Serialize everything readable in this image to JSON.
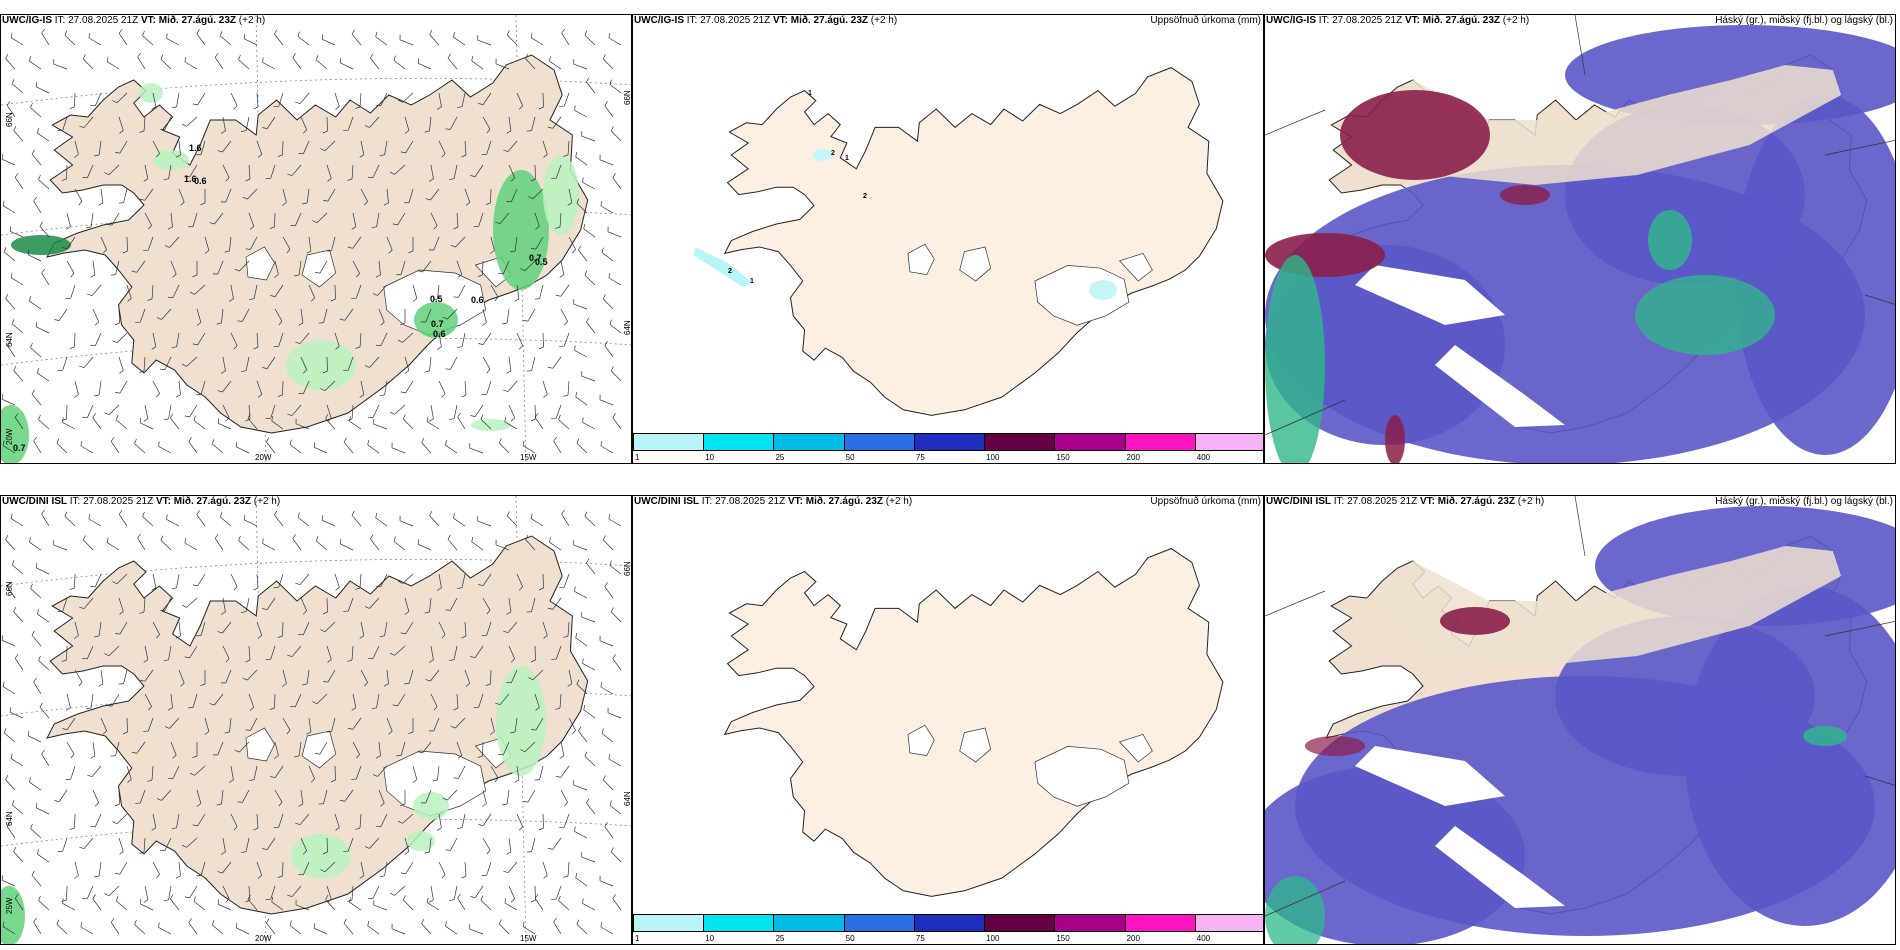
{
  "colors": {
    "land": "#efe0cf",
    "land_plain": "#fdf0e2",
    "ice": "#ffffff",
    "precip_light": "#b9f2bf",
    "precip_mid": "#5fd17a",
    "precip_dark": "#1c8a4a",
    "cloud_low": "#5a58c8",
    "cloud_high": "#8a1e4a",
    "cloud_mid": "#2fb88a"
  },
  "colorbar": {
    "colors": [
      "#b8f5f8",
      "#00e5ef",
      "#00bde6",
      "#2d6de6",
      "#1e2fc0",
      "#660044",
      "#a8008a",
      "#ff14c0",
      "#f5b2f5"
    ],
    "ticks": [
      "1",
      "10",
      "25",
      "50",
      "75",
      "100",
      "150",
      "200",
      "400"
    ]
  },
  "rows": [
    {
      "model": "UWC/IG-IS",
      "wind_panel": {
        "model": "UWC/IG-IS",
        "it": "IT: 27.08.2025 21Z",
        "vt": "VT: Mið. 27.ágú. 23Z",
        "lead": "(+2 h)",
        "lat_labels": [
          "66N",
          "64N",
          "20W",
          "66N",
          "64N"
        ],
        "lon_labels": [
          "20W",
          "15W"
        ],
        "values": [
          "1.6",
          "1.6",
          "0.6",
          "0.5",
          "0.7",
          "0.5",
          "0.6",
          "0.7",
          "0.6",
          "0.7"
        ]
      },
      "precip_panel": {
        "model": "UWC/IG-IS",
        "it": "IT: 27.08.2025 21Z",
        "vt": "VT: Mið. 27.ágú. 23Z",
        "lead": "(+2 h)",
        "right_title": "Uppsöfnuð úrkoma (mm)",
        "values": [
          "1",
          "2",
          "1",
          "2",
          "2",
          "1"
        ]
      },
      "cloud_panel": {
        "model": "UWC/IG-IS",
        "it": "IT: 27.08.2025 21Z",
        "vt": "VT: Mið. 27.ágú. 23Z",
        "lead": "(+2 h)",
        "right_title": "Háský (gr.), miðský (fj.bl.) og lágský (bl.)"
      }
    },
    {
      "model": "UWC/DINI ISL",
      "wind_panel": {
        "model": "UWC/DINI ISL",
        "it": "IT: 27.08.2025 21Z",
        "vt": "VT: Mið. 27.ágú. 23Z",
        "lead": "(+2 h)",
        "lat_labels": [
          "66N",
          "64N",
          "25W",
          "66N",
          "64N"
        ],
        "lon_labels": [
          "20W",
          "15W"
        ],
        "values": []
      },
      "precip_panel": {
        "model": "UWC/DINI ISL",
        "it": "IT: 27.08.2025 21Z",
        "vt": "VT: Mið. 27.ágú. 23Z",
        "lead": "(+2 h)",
        "right_title": "Uppsöfnuð úrkoma (mm)",
        "values": []
      },
      "cloud_panel": {
        "model": "UWC/DINI ISL",
        "it": "IT: 27.08.2025 21Z",
        "vt": "VT: Mið. 27.ágú. 23Z",
        "lead": "(+2 h)",
        "right_title": "Háský (gr.), miðský (fj.bl.) og lágský (bl.)"
      }
    }
  ]
}
